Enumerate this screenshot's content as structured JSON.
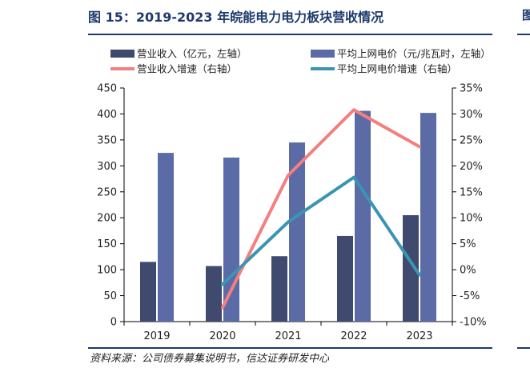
{
  "figure": {
    "title": "图 15：2019-2023 年皖能电力电力板块营收情况",
    "source": "资料来源：公司债券募集说明书，信达证券研发中心"
  },
  "chart_data": {
    "type": "bar",
    "categories": [
      "2019",
      "2020",
      "2021",
      "2022",
      "2023"
    ],
    "series": [
      {
        "name": "营业收入（亿元，左轴）",
        "kind": "bar",
        "axis": "left",
        "color": "#404a6e",
        "values": [
          115,
          107,
          126,
          165,
          205
        ]
      },
      {
        "name": "平均上网电价（元/兆瓦时，左轴）",
        "kind": "bar",
        "axis": "left",
        "color": "#5b6ba5",
        "values": [
          325,
          316,
          345,
          406,
          402
        ]
      },
      {
        "name": "营业收入增速（右轴）",
        "kind": "line",
        "axis": "right",
        "color": "#f47f7f",
        "values": [
          null,
          -7.3,
          18.2,
          30.8,
          23.7
        ]
      },
      {
        "name": "平均上网电价增速（右轴）",
        "kind": "line",
        "axis": "right",
        "color": "#3a95b3",
        "values": [
          null,
          -2.8,
          9.2,
          17.8,
          -1.0
        ]
      }
    ],
    "y_left": {
      "min": 0,
      "max": 450,
      "step": 50,
      "ticks": [
        "0",
        "50",
        "100",
        "150",
        "200",
        "250",
        "300",
        "350",
        "400",
        "450"
      ]
    },
    "y_right": {
      "min": -10,
      "max": 35,
      "step": 5,
      "ticks": [
        "-10%",
        "-5%",
        "0%",
        "5%",
        "10%",
        "15%",
        "20%",
        "25%",
        "30%",
        "35%"
      ]
    },
    "legend_position": "top",
    "grid": false
  }
}
